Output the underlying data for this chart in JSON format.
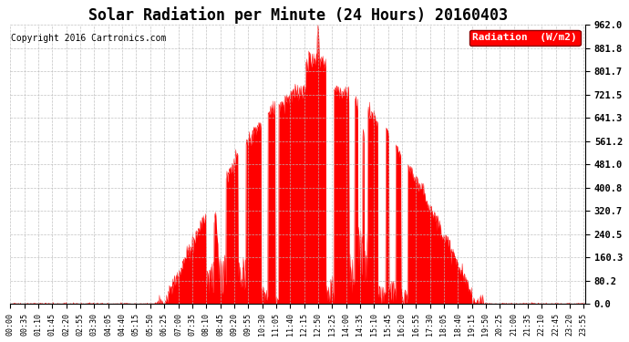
{
  "title": "Solar Radiation per Minute (24 Hours) 20160403",
  "copyright": "Copyright 2016 Cartronics.com",
  "legend_label": "Radiation  (W/m2)",
  "ylim": [
    0.0,
    962.0
  ],
  "yticks": [
    0.0,
    80.2,
    160.3,
    240.5,
    320.7,
    400.8,
    481.0,
    561.2,
    641.3,
    721.5,
    801.7,
    881.8,
    962.0
  ],
  "fill_color": "#FF0000",
  "bg_color": "#FFFFFF",
  "grid_color": "#AAAAAA",
  "title_fontsize": 12,
  "copyright_fontsize": 7,
  "legend_fontsize": 8,
  "tick_interval_min": 35,
  "n_minutes": 1440,
  "sunrise": 385,
  "sunset": 1165
}
